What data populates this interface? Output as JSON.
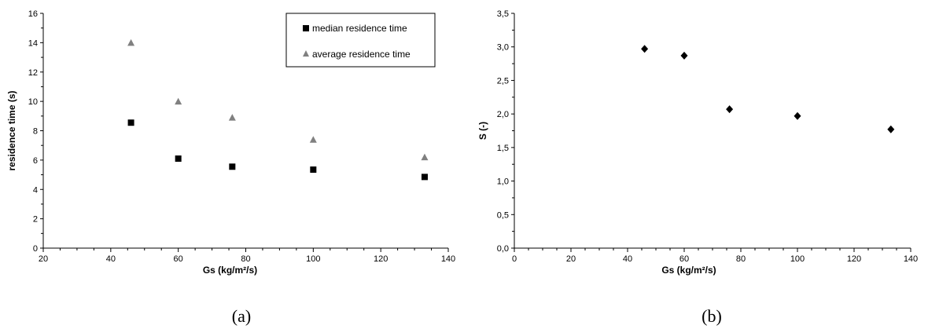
{
  "chart_data": [
    {
      "type": "scatter",
      "caption": "(a)",
      "xlabel": "Gs (kg/m²/s)",
      "ylabel": "residence time (s)",
      "xlim": [
        20,
        140
      ],
      "ylim": [
        0,
        16
      ],
      "xticks": [
        20,
        40,
        60,
        80,
        100,
        120,
        140
      ],
      "yticks": [
        0,
        2,
        4,
        6,
        8,
        10,
        12,
        14,
        16
      ],
      "tick_labels_x": [
        "20",
        "40",
        "60",
        "80",
        "100",
        "120",
        "140"
      ],
      "tick_labels_y": [
        "0",
        "2",
        "4",
        "6",
        "8",
        "10",
        "12",
        "14",
        "16"
      ],
      "grid": false,
      "legend_position": "top-right",
      "series": [
        {
          "name": "median residence time",
          "marker": "square",
          "color": "#000000",
          "x": [
            46,
            60,
            76,
            100,
            133
          ],
          "y": [
            8.55,
            6.1,
            5.55,
            5.35,
            4.85
          ]
        },
        {
          "name": "average residence time",
          "marker": "triangle",
          "color": "#808080",
          "x": [
            46,
            60,
            76,
            100,
            133
          ],
          "y": [
            14.0,
            10.0,
            8.9,
            7.4,
            6.2
          ]
        }
      ]
    },
    {
      "type": "scatter",
      "caption": "(b)",
      "xlabel": "Gs (kg/m²/s)",
      "ylabel": "S (-)",
      "xlim": [
        0,
        140
      ],
      "ylim": [
        0,
        3.5
      ],
      "xticks": [
        0,
        20,
        40,
        60,
        80,
        100,
        120,
        140
      ],
      "yticks": [
        0,
        0.5,
        1,
        1.5,
        2,
        2.5,
        3,
        3.5
      ],
      "tick_labels_x": [
        "0",
        "20",
        "40",
        "60",
        "80",
        "100",
        "120",
        "140"
      ],
      "tick_labels_y": [
        "0,0",
        "0,5",
        "1,0",
        "1,5",
        "2,0",
        "2,5",
        "3,0",
        "3,5"
      ],
      "grid": false,
      "series": [
        {
          "marker": "diamond",
          "color": "#000000",
          "x": [
            46,
            60,
            76,
            100,
            133
          ],
          "y": [
            2.97,
            2.87,
            2.07,
            1.97,
            1.77
          ]
        }
      ]
    }
  ]
}
